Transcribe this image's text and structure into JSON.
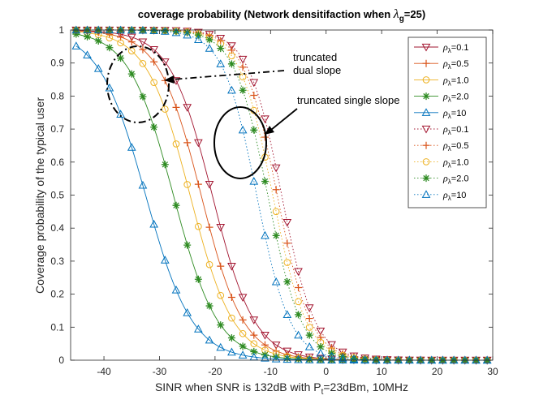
{
  "chart_data": {
    "type": "line",
    "title": "coverage probability (Network densitifaction when λg=25)",
    "title_parts": {
      "prefix": "coverage probability (Network densitifaction when ",
      "lambda": "λ",
      "sub": "g",
      "suffix": "=25)"
    },
    "xlabel": "SINR when SNR is 132dB with Pt=23dBm, 10MHz",
    "xlabel_parts": {
      "prefix": "SINR when SNR is 132dB with P",
      "sub": "t",
      "suffix": "=23dBm, 10MHz"
    },
    "ylabel": "Coverage probability of the typical user",
    "xlim": [
      -46,
      30
    ],
    "ylim": [
      0,
      1
    ],
    "xticks": [
      -40,
      -30,
      -20,
      -10,
      0,
      10,
      20,
      30
    ],
    "yticks": [
      0,
      0.1,
      0.2,
      0.3,
      0.4,
      0.5,
      0.6,
      0.7,
      0.8,
      0.9,
      1
    ],
    "grid": false,
    "legend_position": "top-right",
    "marker_step_db": 2,
    "curve_model": "logistic in SINR (dB): y = 1/(1+exp((x-midpoint)/scale))",
    "series": [
      {
        "name": "ρλ=0.1",
        "rho": "0.1",
        "group": "truncated dual slope",
        "color": "#A2142F",
        "marker": "triangle-down",
        "line": "solid",
        "midpoint": -20.5,
        "scale": 3.8
      },
      {
        "name": "ρλ=0.5",
        "rho": "0.5",
        "group": "truncated dual slope",
        "color": "#D95319",
        "marker": "plus",
        "line": "solid",
        "midpoint": -22.5,
        "scale": 3.8
      },
      {
        "name": "ρλ=1.0",
        "rho": "1.0",
        "group": "truncated dual slope",
        "color": "#EDB120",
        "marker": "circle",
        "line": "solid",
        "midpoint": -24.5,
        "scale": 3.9
      },
      {
        "name": "ρλ=2.0",
        "rho": "2.0",
        "group": "truncated dual slope",
        "color": "#2E8B22",
        "marker": "asterisk",
        "line": "solid",
        "midpoint": -27.5,
        "scale": 4.0
      },
      {
        "name": "ρλ=10",
        "rho": "10",
        "group": "truncated dual slope",
        "color": "#0072BD",
        "marker": "triangle-up",
        "line": "solid",
        "midpoint": -32.5,
        "scale": 4.2
      },
      {
        "name": "ρλ=0.1",
        "rho": "0.1",
        "group": "truncated single slope",
        "color": "#A2142F",
        "marker": "triangle-down",
        "line": "dotted",
        "midpoint": -8.0,
        "scale": 3.0
      },
      {
        "name": "ρλ=0.5",
        "rho": "0.5",
        "group": "truncated single slope",
        "color": "#D95319",
        "marker": "plus",
        "line": "dotted",
        "midpoint": -8.8,
        "scale": 3.0
      },
      {
        "name": "ρλ=1.0",
        "rho": "1.0",
        "group": "truncated single slope",
        "color": "#EDB120",
        "marker": "circle",
        "line": "dotted",
        "midpoint": -9.6,
        "scale": 3.0
      },
      {
        "name": "ρλ=2.0",
        "rho": "2.0",
        "group": "truncated single slope",
        "color": "#2E8B22",
        "marker": "asterisk",
        "line": "dotted",
        "midpoint": -10.5,
        "scale": 3.0
      },
      {
        "name": "ρλ=10",
        "rho": "10",
        "group": "truncated single slope",
        "color": "#0072BD",
        "marker": "triangle-up",
        "line": "dotted",
        "midpoint": -12.5,
        "scale": 3.0
      }
    ],
    "annotations": [
      {
        "label_lines": [
          "truncated",
          "dual slope"
        ],
        "target": "ellipse around solid curves near x≈-32..-27, y≈0.72..0.95",
        "style": "dash-dot ellipse with dash-dot arrow"
      },
      {
        "label_lines": [
          "truncated single slope"
        ],
        "target": "ellipse around dotted curves near x≈-17..-12, y≈0.55..0.77",
        "style": "solid ellipse with solid arrow"
      }
    ]
  }
}
